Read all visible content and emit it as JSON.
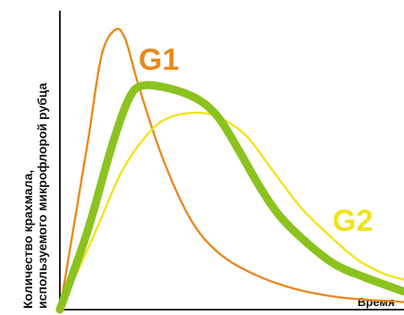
{
  "chart_data": {
    "type": "line",
    "title": "",
    "xlabel": "Время",
    "ylabel_lines": [
      "Количество крахмала,",
      "используемого микрофлорой рубца"
    ],
    "grid": false,
    "series": [
      {
        "name": "G1",
        "color": "#E8891C",
        "stroke": "thin",
        "points": [
          [
            0,
            0
          ],
          [
            0.08,
            0.55
          ],
          [
            0.12,
            0.84
          ],
          [
            0.16,
            0.93
          ],
          [
            0.19,
            0.9
          ],
          [
            0.23,
            0.74
          ],
          [
            0.3,
            0.5
          ],
          [
            0.38,
            0.3
          ],
          [
            0.46,
            0.19
          ],
          [
            0.56,
            0.12
          ],
          [
            0.68,
            0.07
          ],
          [
            0.82,
            0.04
          ],
          [
            1.0,
            0.025
          ]
        ]
      },
      {
        "name": "",
        "color": "#8CC21F",
        "stroke": "thick",
        "points": [
          [
            0,
            0
          ],
          [
            0.08,
            0.26
          ],
          [
            0.15,
            0.54
          ],
          [
            0.2,
            0.7
          ],
          [
            0.24,
            0.745
          ],
          [
            0.32,
            0.735
          ],
          [
            0.4,
            0.7
          ],
          [
            0.46,
            0.64
          ],
          [
            0.52,
            0.53
          ],
          [
            0.58,
            0.41
          ],
          [
            0.64,
            0.31
          ],
          [
            0.72,
            0.22
          ],
          [
            0.8,
            0.15
          ],
          [
            0.88,
            0.11
          ],
          [
            1.0,
            0.06
          ]
        ]
      },
      {
        "name": "G2",
        "color": "#F2E31A",
        "stroke": "thin",
        "points": [
          [
            0,
            0
          ],
          [
            0.1,
            0.25
          ],
          [
            0.18,
            0.46
          ],
          [
            0.26,
            0.59
          ],
          [
            0.32,
            0.64
          ],
          [
            0.4,
            0.655
          ],
          [
            0.46,
            0.64
          ],
          [
            0.54,
            0.58
          ],
          [
            0.62,
            0.46
          ],
          [
            0.7,
            0.34
          ],
          [
            0.78,
            0.25
          ],
          [
            0.86,
            0.17
          ],
          [
            0.94,
            0.12
          ],
          [
            1.0,
            0.1
          ]
        ]
      }
    ]
  }
}
